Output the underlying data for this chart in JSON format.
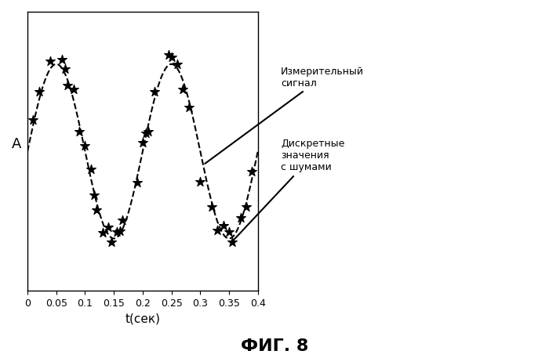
{
  "title": "ФИГ. 8",
  "xlabel": "t(сек)",
  "ylabel": "A",
  "xlim": [
    0,
    0.4
  ],
  "background_color": "#ffffff",
  "curve_color": "#000000",
  "scatter_color": "#000000",
  "annotation_line_color": "#000000",
  "annotation1_text": "Измерительный\nсигнал",
  "annotation2_text": "Дискретные\nзначения\nс шумами",
  "xticks": [
    0,
    0.05,
    0.1,
    0.15,
    0.2,
    0.25,
    0.3,
    0.35,
    0.4
  ],
  "signal_amplitude": 1.0,
  "signal_frequency": 8.0,
  "signal_phase": 0.0,
  "noise_seed": 42,
  "scatter_t": [
    0.01,
    0.02,
    0.04,
    0.06,
    0.065,
    0.07,
    0.08,
    0.09,
    0.1,
    0.11,
    0.115,
    0.12,
    0.13,
    0.14,
    0.145,
    0.155,
    0.16,
    0.165,
    0.19,
    0.2,
    0.205,
    0.21,
    0.22,
    0.245,
    0.25,
    0.26,
    0.27,
    0.28,
    0.3,
    0.32,
    0.33,
    0.34,
    0.35,
    0.355,
    0.37,
    0.38,
    0.39
  ],
  "scatter_noise": [
    0.05,
    0.1,
    0.08,
    0.1,
    0.05,
    -0.05,
    0.12,
    -0.08,
    0.06,
    0.1,
    -0.05,
    -0.08,
    -0.12,
    0.08,
    -0.05,
    0.06,
    0.04,
    0.1,
    -0.05,
    0.1,
    0.05,
    -0.08,
    0.1,
    0.12,
    0.08,
    0.05,
    -0.1,
    -0.08,
    -0.35,
    -0.05,
    -0.1,
    0.1,
    0.08,
    -0.05,
    0.05,
    -0.05,
    0.08
  ]
}
